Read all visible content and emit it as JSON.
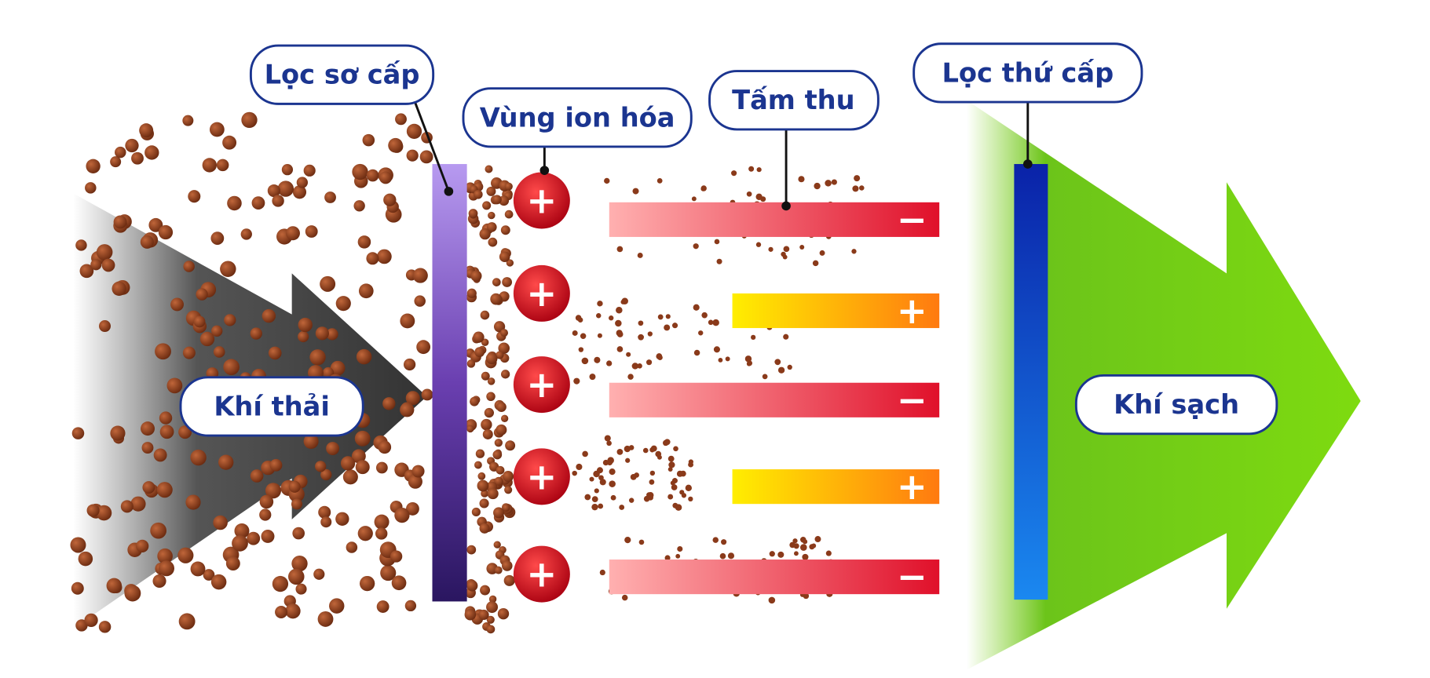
{
  "labels": {
    "primary_filter": "Lọc sơ cấp",
    "ionization_zone": "Vùng ion hóa",
    "collector_plate": "Tấm thu",
    "secondary_filter": "Lọc thứ cấp",
    "exhaust_air": "Khí thải",
    "clean_air": "Khí sạch"
  },
  "ions": [
    "+",
    "+",
    "+",
    "+",
    "+"
  ],
  "plates": [
    "−",
    "+",
    "−",
    "+",
    "−"
  ]
}
